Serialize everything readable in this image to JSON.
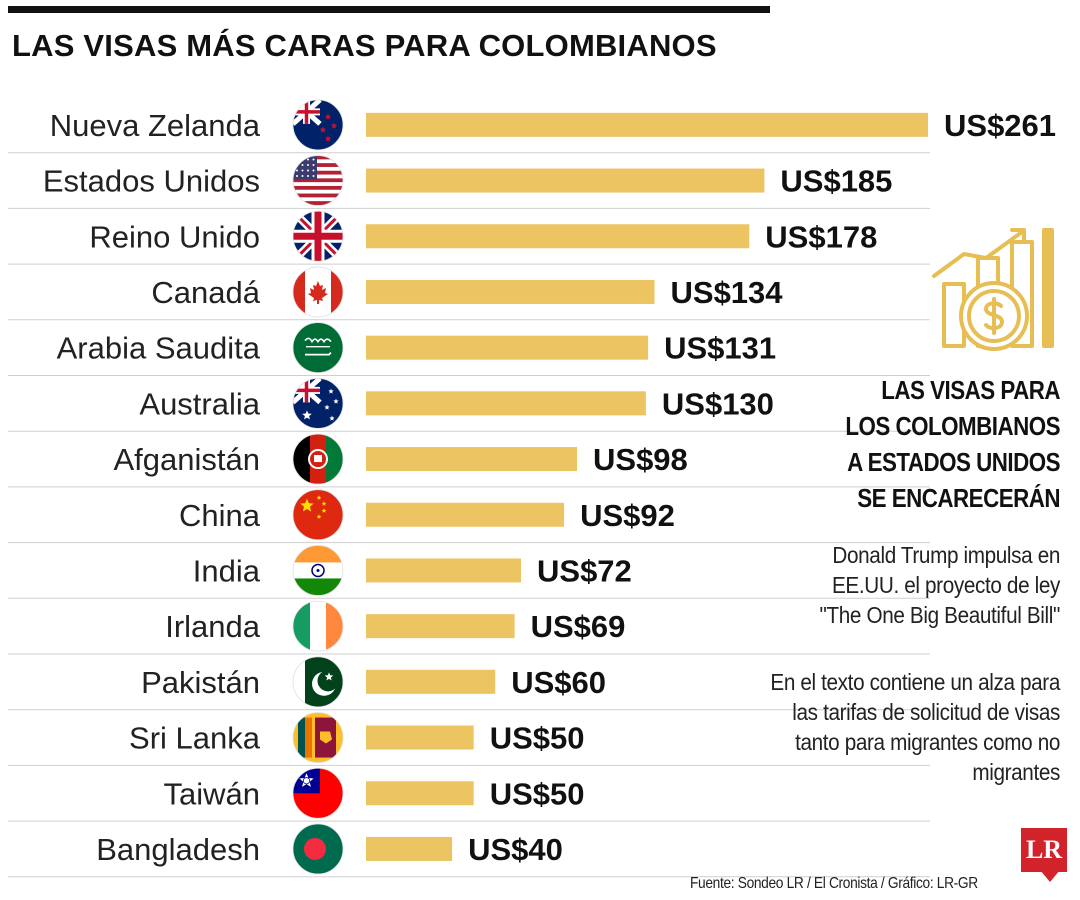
{
  "title": "LAS VISAS MÁS CARAS PARA COLOMBIANOS",
  "colors": {
    "bar": "#ecc462",
    "divider": "#cfcfcf",
    "icon": "#e6be54",
    "logo": "#d2232a"
  },
  "chart_data": {
    "type": "bar",
    "orientation": "horizontal",
    "title": "LAS VISAS MÁS CARAS PARA COLOMBIANOS",
    "categories": [
      "Nueva Zelanda",
      "Estados Unidos",
      "Reino Unido",
      "Canadá",
      "Arabia Saudita",
      "Australia",
      "Afganistán",
      "China",
      "India",
      "Irlanda",
      "Pakistán",
      "Sri Lanka",
      "Taiwán",
      "Bangladesh"
    ],
    "values": [
      261,
      185,
      178,
      134,
      131,
      130,
      98,
      92,
      72,
      69,
      60,
      50,
      50,
      40
    ],
    "value_labels": [
      "US$261",
      "US$185",
      "US$178",
      "US$134",
      "US$131",
      "US$130",
      "US$98",
      "US$92",
      "US$72",
      "US$69",
      "US$60",
      "US$50",
      "US$50",
      "US$40"
    ],
    "flag_icons": [
      "new-zealand-flag-icon",
      "united-states-flag-icon",
      "united-kingdom-flag-icon",
      "canada-flag-icon",
      "saudi-arabia-flag-icon",
      "australia-flag-icon",
      "afghanistan-flag-icon",
      "china-flag-icon",
      "india-flag-icon",
      "ireland-flag-icon",
      "pakistan-flag-icon",
      "sri-lanka-flag-icon",
      "taiwan-flag-icon",
      "bangladesh-flag-icon"
    ],
    "xlim": [
      0,
      261
    ],
    "grid": false,
    "legend": "none"
  },
  "sidebar": {
    "icon": "rising-money-chart-icon",
    "headline": "LAS VISAS PARA LOS COLOMBIANOS A ESTADOS UNIDOS SE ENCARECERÁN",
    "paragraph1": "Donald Trump impulsa en EE.UU. el proyecto de ley \"The One Big Beautiful Bill\"",
    "paragraph2": "En el texto contiene un alza para las tarifas de solicitud de visas tanto para migrantes como no migrantes"
  },
  "source": "Fuente: Sondeo LR / El Cronista / Gráfico: LR-GR",
  "logo": "LR"
}
